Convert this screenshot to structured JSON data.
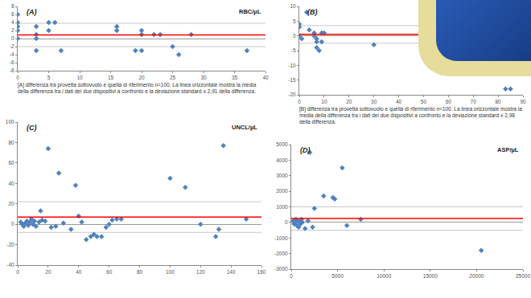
{
  "chart_data": [
    {
      "type": "scatter",
      "panel": "(A)",
      "title": "RBC/µL",
      "marker": "diamond",
      "color": "#4f81bd",
      "grid": false,
      "caption": "[A] differenza tra provetta sottovuoto e quella di riferimento n=100. La linea orizzontale mostra la media della differenza tra i dati dei due dispositivi a confronto e la deviazione standard ± 2,91 della differenza.",
      "x": [
        0,
        0,
        0,
        0,
        0,
        3,
        3,
        3,
        3,
        5,
        5,
        6,
        7,
        16,
        16,
        19,
        20,
        20,
        20,
        22,
        23,
        25,
        26,
        28,
        37
      ],
      "values": [
        6,
        4,
        3,
        2,
        0,
        3,
        1,
        0,
        -3,
        2,
        4,
        4,
        -3,
        3,
        2,
        -3,
        2,
        1,
        -3,
        1,
        1,
        -2,
        -4,
        1,
        -3
      ],
      "mean": 0.9,
      "limits": [
        3.8,
        -2.0
      ],
      "xlim": [
        0,
        40
      ],
      "xticks": [
        0,
        5,
        10,
        15,
        20,
        25,
        30,
        35,
        40
      ],
      "ylim": [
        -8,
        8
      ],
      "yticks": [
        -8,
        -6,
        -4,
        -2,
        0,
        2,
        4,
        6,
        8
      ]
    },
    {
      "type": "scatter",
      "panel": "(B)",
      "marker": "diamond",
      "color": "#4f81bd",
      "grid": false,
      "caption": "[B] differenza tra provetta sottovuoto e quella di riferimento n=100. La linea orizzontale mostra la media della differenza tra i dati dei due dispositivi a confronto e la deviazione standard ± 2,98 della differenza.",
      "x": [
        0,
        0,
        0,
        1,
        3,
        4,
        6,
        6,
        7,
        7,
        7,
        8,
        9,
        10,
        9,
        30,
        83,
        85
      ],
      "values": [
        4,
        3,
        0,
        -1,
        8,
        2,
        1,
        0,
        -1,
        -2,
        -4,
        -5,
        1,
        1,
        -2,
        -3,
        -18,
        -18
      ],
      "mean": 0.5,
      "limits": [
        3.5,
        -2.5
      ],
      "xlim": [
        0,
        90
      ],
      "xticks": [
        0,
        10,
        20,
        30,
        40,
        50,
        60,
        70,
        80,
        90
      ],
      "ylim": [
        -20,
        10
      ],
      "yticks": [
        -20,
        -15,
        -10,
        -5,
        0,
        5,
        10
      ]
    },
    {
      "type": "scatter",
      "panel": "(C)",
      "title": "UNCL/µL",
      "marker": "diamond",
      "color": "#4f81bd",
      "grid": false,
      "x": [
        2,
        3,
        4,
        5,
        6,
        7,
        8,
        9,
        10,
        11,
        12,
        14,
        15,
        16,
        18,
        20,
        22,
        25,
        27,
        30,
        35,
        38,
        40,
        42,
        45,
        48,
        50,
        52,
        55,
        58,
        60,
        62,
        65,
        68,
        100,
        110,
        120,
        130,
        132,
        135,
        150
      ],
      "values": [
        2,
        0,
        -2,
        1,
        3,
        -1,
        2,
        5,
        0,
        3,
        -2,
        2,
        13,
        4,
        3,
        74,
        -3,
        -2,
        50,
        1,
        -5,
        38,
        8,
        2,
        -15,
        -12,
        -10,
        -12,
        -12,
        -3,
        0,
        4,
        5,
        5,
        45,
        36,
        0,
        -12,
        -5,
        77,
        5
      ],
      "mean": 7,
      "limits": [
        22,
        -8
      ],
      "xlim": [
        0,
        160
      ],
      "xticks": [
        0,
        20,
        40,
        60,
        80,
        100,
        120,
        140,
        160
      ],
      "ylim": [
        -40,
        100
      ],
      "yticks": [
        -40,
        -20,
        0,
        20,
        40,
        60,
        80,
        100
      ]
    },
    {
      "type": "scatter",
      "panel": "(D)",
      "title": "ASP/µL",
      "marker": "diamond",
      "color": "#4f81bd",
      "grid": false,
      "x": [
        200,
        300,
        400,
        500,
        600,
        700,
        800,
        900,
        1000,
        1100,
        1200,
        1500,
        1800,
        2000,
        2300,
        2500,
        3500,
        4500,
        4700,
        5500,
        6000,
        7500,
        20500
      ],
      "values": [
        100,
        -100,
        0,
        200,
        -200,
        100,
        -300,
        0,
        -100,
        200,
        0,
        -400,
        100,
        4500,
        -300,
        900,
        1700,
        1600,
        1500,
        3500,
        -200,
        200,
        -1800
      ],
      "mean": 250,
      "limits": [
        1000,
        -500
      ],
      "xlim": [
        0,
        25000
      ],
      "xticks": [
        0,
        5000,
        10000,
        15000,
        20000,
        25000
      ],
      "ylim": [
        -3000,
        5000
      ],
      "yticks": [
        -3000,
        -2000,
        -1000,
        0,
        1000,
        2000,
        3000,
        4000,
        5000
      ]
    }
  ]
}
